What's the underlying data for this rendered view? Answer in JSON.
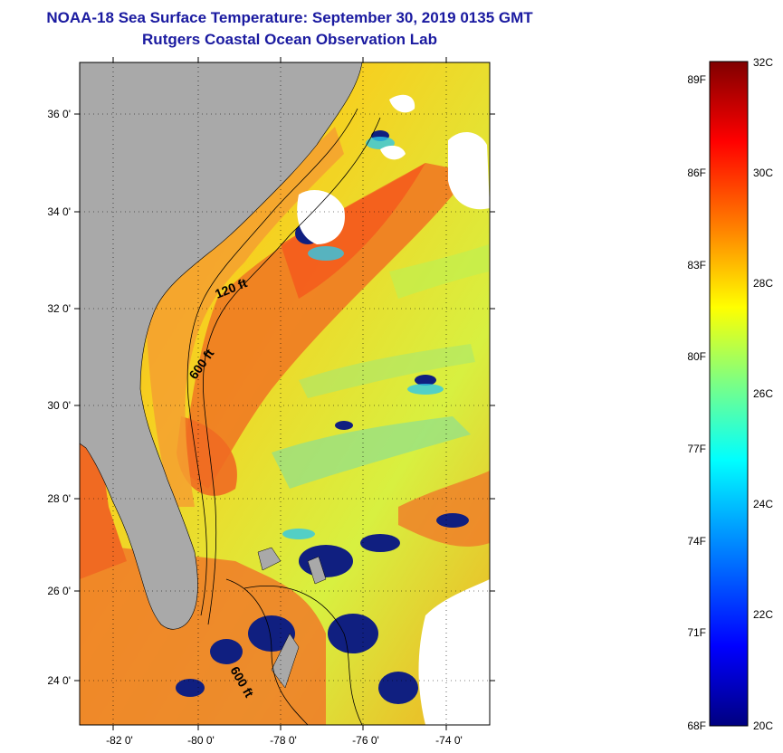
{
  "title": {
    "line1": "NOAA-18 Sea Surface Temperature:  September 30, 2019 0135 GMT",
    "line2": "Rutgers Coastal Ocean Observation Lab"
  },
  "map": {
    "lat_labels": [
      "36 0'",
      "34 0'",
      "32 0'",
      "30 0'",
      "28 0'",
      "26 0'",
      "24 0'"
    ],
    "lon_labels": [
      "-82 0'",
      "-80 0'",
      "-78 0'",
      "-76 0'",
      "-74 0'"
    ],
    "contour_labels": [
      "120 ft",
      "600 ft",
      "600 ft"
    ],
    "colors": {
      "land": "#a9a9a9",
      "warm": "#f07020",
      "mid": "#f6c020",
      "yellow": "#e8f020",
      "cool": "#40d0e0",
      "cold": "#102080",
      "cloud": "#ffffff"
    }
  },
  "colorbar": {
    "f_labels": [
      "89F",
      "86F",
      "83F",
      "80F",
      "77F",
      "74F",
      "71F",
      "68F"
    ],
    "c_labels": [
      "32C",
      "30C",
      "28C",
      "26C",
      "24C",
      "22C",
      "20C"
    ],
    "colors": [
      "#000080",
      "#0000ff",
      "#00a0ff",
      "#00ffff",
      "#80ff80",
      "#ffff00",
      "#ff8000",
      "#ff0000",
      "#800000"
    ]
  }
}
